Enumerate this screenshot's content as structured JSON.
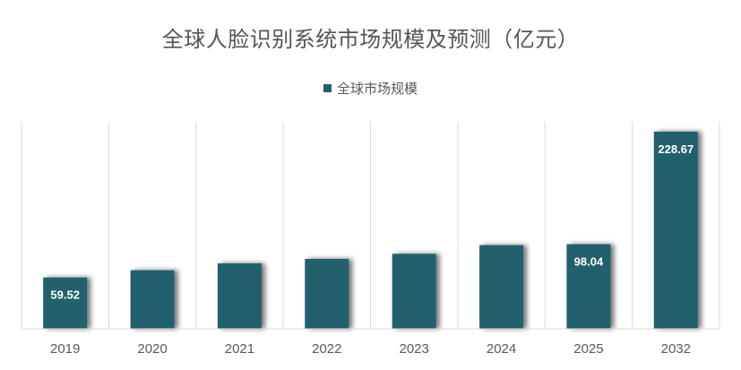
{
  "colors": {
    "bar": "#23606e",
    "grid": "#d9d9d9",
    "axis_text": "#595959",
    "label_text": "#ffffff"
  },
  "chart_data": {
    "type": "bar",
    "title": "全球人脸识别系统市场规模及预测（亿元）",
    "legend": {
      "position": "top",
      "entries": [
        "全球市场规模"
      ]
    },
    "categories": [
      "2019",
      "2020",
      "2021",
      "2022",
      "2023",
      "2024",
      "2025",
      "2032"
    ],
    "series": [
      {
        "name": "全球市场规模",
        "values": [
          59.52,
          68,
          76,
          81,
          87,
          97,
          98.04,
          228.67
        ],
        "data_labels": [
          "59.52",
          "",
          "",
          "",
          "",
          "",
          "98.04",
          "228.67"
        ]
      }
    ],
    "xlabel": "",
    "ylabel": "",
    "ylim": [
      0,
      240
    ],
    "grid": "vertical category separators"
  }
}
